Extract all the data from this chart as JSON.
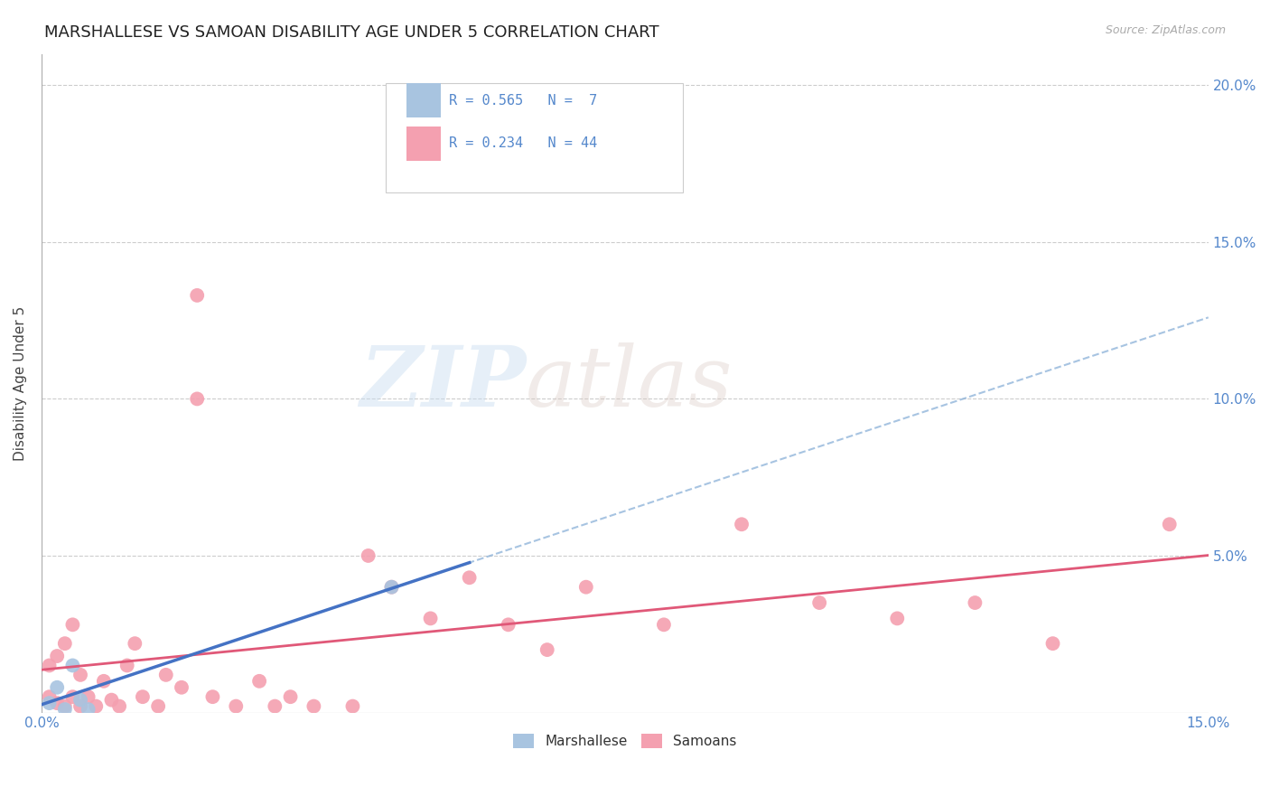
{
  "title": "MARSHALLESE VS SAMOAN DISABILITY AGE UNDER 5 CORRELATION CHART",
  "source": "Source: ZipAtlas.com",
  "ylabel": "Disability Age Under 5",
  "xlim": [
    0.0,
    0.15
  ],
  "ylim": [
    0.0,
    0.21
  ],
  "marshallese_x": [
    0.001,
    0.002,
    0.003,
    0.004,
    0.005,
    0.006,
    0.045
  ],
  "marshallese_y": [
    0.003,
    0.008,
    0.001,
    0.015,
    0.004,
    0.001,
    0.04
  ],
  "samoan_x": [
    0.001,
    0.001,
    0.002,
    0.002,
    0.003,
    0.003,
    0.004,
    0.004,
    0.005,
    0.005,
    0.006,
    0.007,
    0.008,
    0.009,
    0.01,
    0.011,
    0.012,
    0.013,
    0.015,
    0.016,
    0.018,
    0.02,
    0.02,
    0.022,
    0.025,
    0.028,
    0.03,
    0.032,
    0.035,
    0.04,
    0.042,
    0.045,
    0.05,
    0.055,
    0.06,
    0.065,
    0.07,
    0.08,
    0.09,
    0.1,
    0.11,
    0.12,
    0.13,
    0.145
  ],
  "samoan_y": [
    0.005,
    0.015,
    0.003,
    0.018,
    0.002,
    0.022,
    0.005,
    0.028,
    0.002,
    0.012,
    0.005,
    0.002,
    0.01,
    0.004,
    0.002,
    0.015,
    0.022,
    0.005,
    0.002,
    0.012,
    0.008,
    0.133,
    0.1,
    0.005,
    0.002,
    0.01,
    0.002,
    0.005,
    0.002,
    0.002,
    0.05,
    0.04,
    0.03,
    0.043,
    0.028,
    0.02,
    0.04,
    0.028,
    0.06,
    0.035,
    0.03,
    0.035,
    0.022,
    0.06
  ],
  "marshallese_color": "#a8c4e0",
  "samoan_color": "#f4a0b0",
  "marshallese_line_color": "#4472c4",
  "samoan_line_color": "#e05878",
  "dashed_line_color": "#8ab0d8",
  "r_marshallese": 0.565,
  "n_marshallese": 7,
  "r_samoan": 0.234,
  "n_samoan": 44,
  "watermark_zip": "ZIP",
  "watermark_atlas": "atlas",
  "background_color": "#ffffff",
  "grid_color": "#cccccc",
  "tick_color": "#5588cc",
  "title_fontsize": 13,
  "axis_label_fontsize": 11,
  "tick_fontsize": 11,
  "legend_r_color": "#5588cc"
}
